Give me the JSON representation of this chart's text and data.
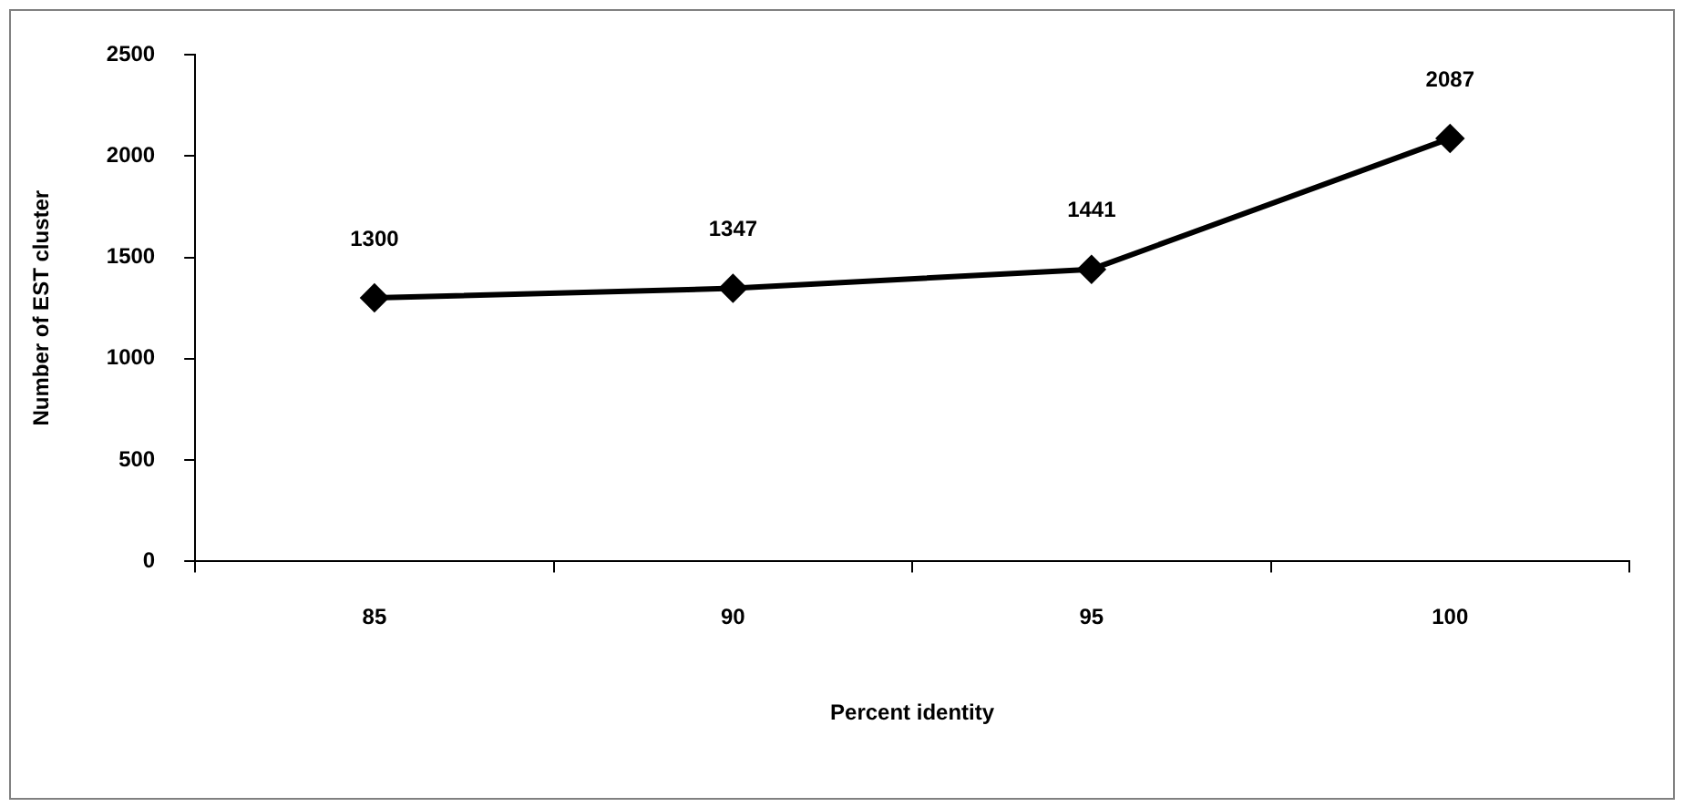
{
  "chart_data": {
    "type": "line",
    "xlabel": "Percent identity",
    "ylabel": "Number of EST cluster",
    "categories": [
      "85",
      "90",
      "95",
      "100"
    ],
    "series": [
      {
        "color": "#000000",
        "values": [
          1300,
          1347,
          1441,
          2087
        ]
      }
    ],
    "ylim": [
      0,
      2500
    ],
    "yticks": [
      0,
      500,
      1000,
      1500,
      2000,
      2500
    ],
    "marker": "diamond",
    "line_style": "solid",
    "data_labels": true,
    "grid": false,
    "legend": false
  }
}
